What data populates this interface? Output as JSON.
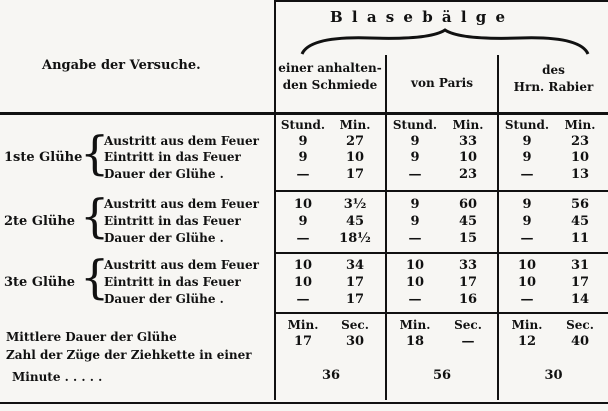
{
  "header": {
    "left": "Angabe der Versuche.",
    "group": "B l a s e b ä l g e",
    "columns": [
      "einer anhalten-\nden Schmiede",
      "von Paris",
      "des\nHrn. Rabier"
    ]
  },
  "units": {
    "hour": "Stund.",
    "min": "Min.",
    "sec": "Sec."
  },
  "glow_labels": [
    "1ste Glühe",
    "2te Glühe",
    "3te Glühe"
  ],
  "row_labels": [
    "Austritt aus dem Feuer",
    "Eintritt in das Feuer",
    "Dauer der Glühe ."
  ],
  "glows": [
    [
      [
        "9",
        "27",
        "9",
        "33",
        "9",
        "23"
      ],
      [
        "9",
        "10",
        "9",
        "10",
        "9",
        "10"
      ],
      [
        "—",
        "17",
        "—",
        "23",
        "—",
        "13"
      ]
    ],
    [
      [
        "10",
        "3½",
        "9",
        "60",
        "9",
        "56"
      ],
      [
        "9",
        "45",
        "9",
        "45",
        "9",
        "45"
      ],
      [
        "—",
        "18½",
        "—",
        "15",
        "—",
        "11"
      ]
    ],
    [
      [
        "10",
        "34",
        "10",
        "33",
        "10",
        "31"
      ],
      [
        "10",
        "17",
        "10",
        "17",
        "10",
        "17"
      ],
      [
        "—",
        "17",
        "—",
        "16",
        "—",
        "14"
      ]
    ]
  ],
  "mean": {
    "label": "Mittlere Dauer der Glühe",
    "values": [
      "17",
      "30",
      "18",
      "—",
      "12",
      "40"
    ]
  },
  "pulls": {
    "label1": "Zahl der Züge der Ziehkette in einer",
    "label2": "Minute . . . . .",
    "values": [
      "36",
      "56",
      "30"
    ]
  }
}
